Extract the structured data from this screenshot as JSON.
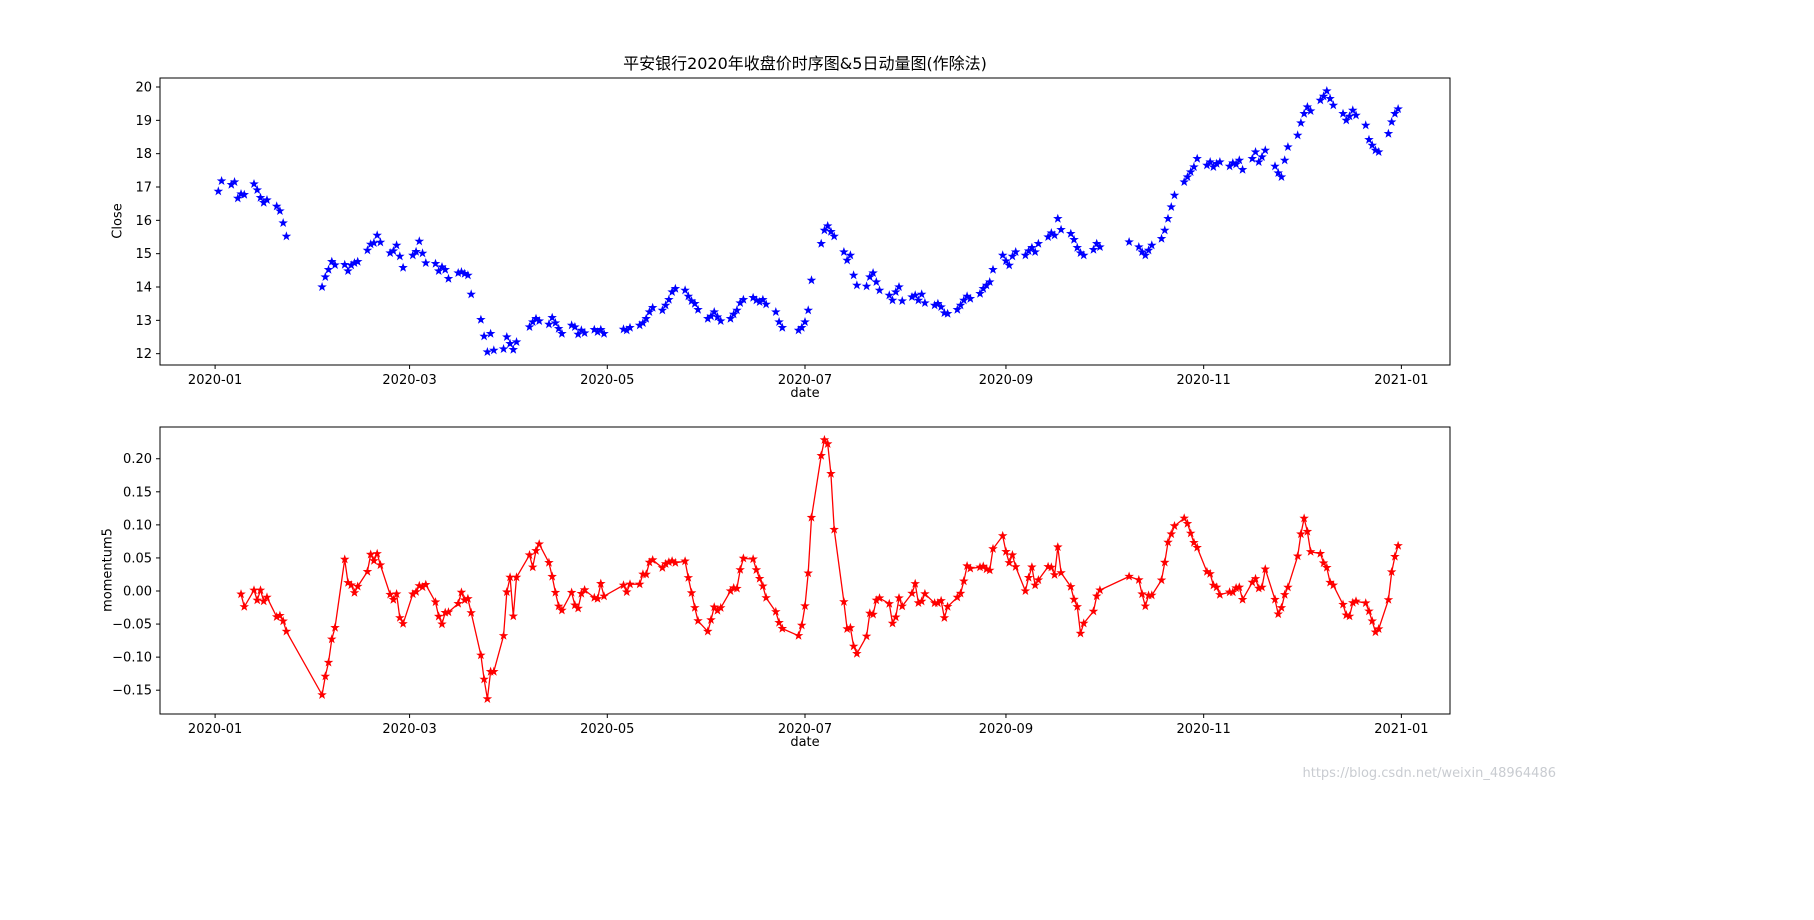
{
  "watermark": "https://blog.csdn.net/weixin_48964486",
  "chart_data": [
    {
      "name": "close-price-chart",
      "type": "scatter",
      "title": "平安银行2020年收盘价时序图&5日动量图(作除法)",
      "xlabel": "date",
      "ylabel": "Close",
      "marker": "star",
      "color": "#0000ff",
      "has_line": false,
      "grid": false,
      "legend": "none",
      "x_domain": [
        "2019-12-15",
        "2021-01-16"
      ],
      "ylim": [
        11.66,
        20.27
      ],
      "yticks": [
        {
          "value": 12,
          "label": "12"
        },
        {
          "value": 13,
          "label": "13"
        },
        {
          "value": 14,
          "label": "14"
        },
        {
          "value": 15,
          "label": "15"
        },
        {
          "value": 16,
          "label": "16"
        },
        {
          "value": 17,
          "label": "17"
        },
        {
          "value": 18,
          "label": "18"
        },
        {
          "value": 19,
          "label": "19"
        },
        {
          "value": 20,
          "label": "20"
        }
      ],
      "xticks": [
        {
          "date": "2020-01-01",
          "label": "2020-01"
        },
        {
          "date": "2020-03-01",
          "label": "2020-03"
        },
        {
          "date": "2020-05-01",
          "label": "2020-05"
        },
        {
          "date": "2020-07-01",
          "label": "2020-07"
        },
        {
          "date": "2020-09-01",
          "label": "2020-09"
        },
        {
          "date": "2020-11-01",
          "label": "2020-11"
        },
        {
          "date": "2021-01-01",
          "label": "2021-01"
        }
      ],
      "dates": [
        "2020-01-02",
        "2020-01-03",
        "2020-01-06",
        "2020-01-07",
        "2020-01-08",
        "2020-01-09",
        "2020-01-10",
        "2020-01-13",
        "2020-01-14",
        "2020-01-15",
        "2020-01-16",
        "2020-01-17",
        "2020-01-20",
        "2020-01-21",
        "2020-01-22",
        "2020-01-23",
        "2020-02-03",
        "2020-02-04",
        "2020-02-05",
        "2020-02-06",
        "2020-02-07",
        "2020-02-10",
        "2020-02-11",
        "2020-02-12",
        "2020-02-13",
        "2020-02-14",
        "2020-02-17",
        "2020-02-18",
        "2020-02-19",
        "2020-02-20",
        "2020-02-21",
        "2020-02-24",
        "2020-02-25",
        "2020-02-26",
        "2020-02-27",
        "2020-02-28",
        "2020-03-02",
        "2020-03-03",
        "2020-03-04",
        "2020-03-05",
        "2020-03-06",
        "2020-03-09",
        "2020-03-10",
        "2020-03-11",
        "2020-03-12",
        "2020-03-13",
        "2020-03-16",
        "2020-03-17",
        "2020-03-18",
        "2020-03-19",
        "2020-03-20",
        "2020-03-23",
        "2020-03-24",
        "2020-03-25",
        "2020-03-26",
        "2020-03-27",
        "2020-03-30",
        "2020-03-31",
        "2020-04-01",
        "2020-04-02",
        "2020-04-03",
        "2020-04-07",
        "2020-04-08",
        "2020-04-09",
        "2020-04-10",
        "2020-04-13",
        "2020-04-14",
        "2020-04-15",
        "2020-04-16",
        "2020-04-17",
        "2020-04-20",
        "2020-04-21",
        "2020-04-22",
        "2020-04-23",
        "2020-04-24",
        "2020-04-27",
        "2020-04-28",
        "2020-04-29",
        "2020-04-30",
        "2020-05-06",
        "2020-05-07",
        "2020-05-08",
        "2020-05-11",
        "2020-05-12",
        "2020-05-13",
        "2020-05-14",
        "2020-05-15",
        "2020-05-18",
        "2020-05-19",
        "2020-05-20",
        "2020-05-21",
        "2020-05-22",
        "2020-05-25",
        "2020-05-26",
        "2020-05-27",
        "2020-05-28",
        "2020-05-29",
        "2020-06-01",
        "2020-06-02",
        "2020-06-03",
        "2020-06-04",
        "2020-06-05",
        "2020-06-08",
        "2020-06-09",
        "2020-06-10",
        "2020-06-11",
        "2020-06-12",
        "2020-06-15",
        "2020-06-16",
        "2020-06-17",
        "2020-06-18",
        "2020-06-19",
        "2020-06-22",
        "2020-06-23",
        "2020-06-24",
        "2020-06-29",
        "2020-06-30",
        "2020-07-01",
        "2020-07-02",
        "2020-07-03",
        "2020-07-06",
        "2020-07-07",
        "2020-07-08",
        "2020-07-09",
        "2020-07-10",
        "2020-07-13",
        "2020-07-14",
        "2020-07-15",
        "2020-07-16",
        "2020-07-17",
        "2020-07-20",
        "2020-07-21",
        "2020-07-22",
        "2020-07-23",
        "2020-07-24",
        "2020-07-27",
        "2020-07-28",
        "2020-07-29",
        "2020-07-30",
        "2020-07-31",
        "2020-08-03",
        "2020-08-04",
        "2020-08-05",
        "2020-08-06",
        "2020-08-07",
        "2020-08-10",
        "2020-08-11",
        "2020-08-12",
        "2020-08-13",
        "2020-08-14",
        "2020-08-17",
        "2020-08-18",
        "2020-08-19",
        "2020-08-20",
        "2020-08-21",
        "2020-08-24",
        "2020-08-25",
        "2020-08-26",
        "2020-08-27",
        "2020-08-28",
        "2020-08-31",
        "2020-09-01",
        "2020-09-02",
        "2020-09-03",
        "2020-09-04",
        "2020-09-07",
        "2020-09-08",
        "2020-09-09",
        "2020-09-10",
        "2020-09-11",
        "2020-09-14",
        "2020-09-15",
        "2020-09-16",
        "2020-09-17",
        "2020-09-18",
        "2020-09-21",
        "2020-09-22",
        "2020-09-23",
        "2020-09-24",
        "2020-09-25",
        "2020-09-28",
        "2020-09-29",
        "2020-09-30",
        "2020-10-09",
        "2020-10-12",
        "2020-10-13",
        "2020-10-14",
        "2020-10-15",
        "2020-10-16",
        "2020-10-19",
        "2020-10-20",
        "2020-10-21",
        "2020-10-22",
        "2020-10-23",
        "2020-10-26",
        "2020-10-27",
        "2020-10-28",
        "2020-10-29",
        "2020-10-30",
        "2020-11-02",
        "2020-11-03",
        "2020-11-04",
        "2020-11-05",
        "2020-11-06",
        "2020-11-09",
        "2020-11-10",
        "2020-11-11",
        "2020-11-12",
        "2020-11-13",
        "2020-11-16",
        "2020-11-17",
        "2020-11-18",
        "2020-11-19",
        "2020-11-20",
        "2020-11-23",
        "2020-11-24",
        "2020-11-25",
        "2020-11-26",
        "2020-11-27",
        "2020-11-30",
        "2020-12-01",
        "2020-12-02",
        "2020-12-03",
        "2020-12-04",
        "2020-12-07",
        "2020-12-08",
        "2020-12-09",
        "2020-12-10",
        "2020-12-11",
        "2020-12-14",
        "2020-12-15",
        "2020-12-16",
        "2020-12-17",
        "2020-12-18",
        "2020-12-21",
        "2020-12-22",
        "2020-12-23",
        "2020-12-24",
        "2020-12-25",
        "2020-12-28",
        "2020-12-29",
        "2020-12-30",
        "2020-12-31"
      ],
      "values": [
        16.87,
        17.18,
        17.07,
        17.15,
        16.66,
        16.79,
        16.77,
        17.09,
        16.91,
        16.68,
        16.53,
        16.61,
        16.42,
        16.28,
        15.92,
        15.52,
        14.0,
        14.3,
        14.52,
        14.76,
        14.66,
        14.67,
        14.48,
        14.65,
        14.72,
        14.76,
        15.1,
        15.28,
        15.32,
        15.55,
        15.34,
        15.02,
        15.08,
        15.25,
        14.92,
        14.58,
        14.95,
        15.06,
        15.37,
        15.01,
        14.72,
        14.7,
        14.48,
        14.6,
        14.52,
        14.25,
        14.42,
        14.45,
        14.4,
        14.35,
        13.78,
        13.02,
        12.52,
        12.05,
        12.6,
        12.1,
        12.14,
        12.5,
        12.3,
        12.12,
        12.35,
        12.8,
        12.95,
        13.05,
        12.98,
        12.88,
        13.08,
        12.92,
        12.75,
        12.6,
        12.85,
        12.8,
        12.58,
        12.7,
        12.62,
        12.72,
        12.65,
        12.72,
        12.6,
        12.73,
        12.7,
        12.78,
        12.85,
        12.92,
        13.05,
        13.25,
        13.38,
        13.3,
        13.45,
        13.62,
        13.85,
        13.95,
        13.9,
        13.72,
        13.58,
        13.5,
        13.32,
        13.05,
        13.12,
        13.25,
        13.1,
        12.98,
        13.05,
        13.18,
        13.3,
        13.52,
        13.62,
        13.68,
        13.6,
        13.55,
        13.62,
        13.48,
        13.25,
        12.95,
        12.78,
        12.7,
        12.78,
        12.95,
        13.3,
        14.2,
        15.3,
        15.7,
        15.83,
        15.66,
        15.52,
        15.05,
        14.8,
        14.95,
        14.35,
        14.05,
        14.02,
        14.3,
        14.42,
        14.15,
        13.9,
        13.75,
        13.6,
        13.85,
        14.0,
        13.58,
        13.7,
        13.75,
        13.6,
        13.78,
        13.52,
        13.45,
        13.5,
        13.4,
        13.22,
        13.2,
        13.32,
        13.45,
        13.6,
        13.72,
        13.65,
        13.8,
        13.95,
        14.05,
        14.15,
        14.52,
        14.95,
        14.78,
        14.65,
        14.92,
        15.05,
        14.95,
        15.08,
        15.18,
        15.05,
        15.3,
        15.5,
        15.62,
        15.55,
        16.05,
        15.72,
        15.6,
        15.42,
        15.18,
        15.02,
        14.95,
        15.12,
        15.3,
        15.2,
        15.35,
        15.2,
        15.05,
        14.95,
        15.1,
        15.25,
        15.45,
        15.7,
        16.05,
        16.4,
        16.75,
        17.15,
        17.3,
        17.45,
        17.6,
        17.85,
        17.65,
        17.75,
        17.6,
        17.7,
        17.75,
        17.62,
        17.72,
        17.68,
        17.8,
        17.52,
        17.85,
        18.05,
        17.75,
        17.9,
        18.1,
        17.62,
        17.42,
        17.3,
        17.8,
        18.2,
        18.55,
        18.92,
        19.2,
        19.4,
        19.28,
        19.6,
        19.72,
        19.88,
        19.65,
        19.45,
        19.2,
        19.0,
        19.12,
        19.3,
        19.15,
        18.85,
        18.42,
        18.25,
        18.1,
        18.05,
        18.6,
        18.95,
        19.2,
        19.34
      ]
    },
    {
      "name": "momentum5-chart",
      "type": "line",
      "title": "",
      "xlabel": "date",
      "ylabel": "momentum5",
      "marker": "star",
      "color": "#ff0000",
      "has_line": true,
      "grid": false,
      "legend": "none",
      "derived_from": "close-price-chart",
      "values_formula": "momentum5[t] = close[t] / close[t-5] - 1 (division method, first 5 days dropped)",
      "x_domain": [
        "2019-12-15",
        "2021-01-16"
      ],
      "ylim": [
        -0.186,
        0.248
      ],
      "yticks": [
        {
          "value": -0.15,
          "label": "−0.15"
        },
        {
          "value": -0.1,
          "label": "−0.10"
        },
        {
          "value": -0.05,
          "label": "−0.05"
        },
        {
          "value": 0.0,
          "label": "0.00"
        },
        {
          "value": 0.05,
          "label": "0.05"
        },
        {
          "value": 0.1,
          "label": "0.10"
        },
        {
          "value": 0.15,
          "label": "0.15"
        },
        {
          "value": 0.2,
          "label": "0.20"
        }
      ],
      "xticks": [
        {
          "date": "2020-01-01",
          "label": "2020-01"
        },
        {
          "date": "2020-03-01",
          "label": "2020-03"
        },
        {
          "date": "2020-05-01",
          "label": "2020-05"
        },
        {
          "date": "2020-07-01",
          "label": "2020-07"
        },
        {
          "date": "2020-09-01",
          "label": "2020-09"
        },
        {
          "date": "2020-11-01",
          "label": "2020-11"
        },
        {
          "date": "2021-01-01",
          "label": "2021-01"
        }
      ]
    }
  ]
}
